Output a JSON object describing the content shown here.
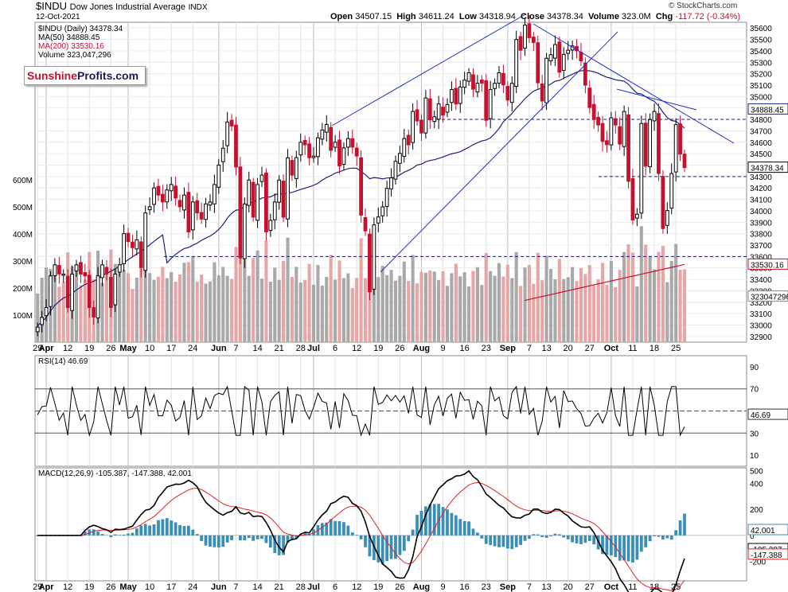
{
  "header": {
    "symbol": "$INDU",
    "name": "Dow Jones Industrial Average",
    "exchange": "INDX",
    "date": "12-Oct-2021",
    "open_label": "Open",
    "open": "34507.15",
    "high_label": "High",
    "high": "34611.24",
    "low_label": "Low",
    "low": "34318.94",
    "close_label": "Close",
    "close": "34378.34",
    "volume_label": "Volume",
    "volume": "323.0M",
    "chg_label": "Chg",
    "chg": "-117.72 (-0.34%)",
    "watermark": "© StockCharts.com"
  },
  "logo": {
    "part1": "Sunshine",
    "part2": "Profits.com"
  },
  "colors": {
    "up": "#000000",
    "down": "#c8102e",
    "ma50": "#1a237e",
    "ma200": "#c8102e",
    "trend": "#1a33c8",
    "vol_up": "#a9a9a9",
    "vol_down": "#e8a5a5",
    "macd_hist": "#3a8fb7",
    "signal": "#e02020"
  },
  "chart_data": [
    {
      "type": "candlestick",
      "legend": [
        "$INDU (Daily) 34378.34",
        "MA(50) 34888.45",
        "MA(200) 33530.16",
        "Volume 323,047,296"
      ],
      "x_ticks": [
        "29",
        "Apr",
        "12",
        "19",
        "26",
        "May",
        "10",
        "17",
        "24",
        "Jun",
        "7",
        "14",
        "21",
        "28",
        "Jul",
        "6",
        "12",
        "19",
        "26",
        "Aug",
        "9",
        "16",
        "23",
        "Sep",
        "7",
        "13",
        "20",
        "27",
        "Oct",
        "11",
        "18",
        "25"
      ],
      "y_ticks": [
        "32900",
        "33000",
        "33100",
        "33200",
        "33300",
        "33400",
        "33500",
        "33600",
        "33700",
        "33800",
        "33900",
        "34000",
        "34100",
        "34200",
        "34300",
        "34400",
        "34500",
        "34600",
        "34700",
        "34800",
        "34900",
        "35000",
        "35100",
        "35200",
        "35300",
        "35400",
        "35500",
        "35600"
      ],
      "ylim": [
        32850,
        35650
      ],
      "value_labels": {
        "last": "34378.34",
        "ma50": "34888.45",
        "ma200": "33530.16",
        "volume": "323047296"
      },
      "volume_ticks": [
        "100M",
        "200M",
        "300M",
        "400M",
        "500M",
        "600M"
      ],
      "volume_ylim": [
        0,
        650
      ],
      "closes": [
        32981,
        33066,
        33153,
        33430,
        33527,
        33447,
        33446,
        33153,
        33446,
        33527,
        33446,
        33430,
        33153,
        33070,
        33430,
        33527,
        33446,
        33153,
        33446,
        33527,
        33800,
        33730,
        33677,
        33746,
        33503,
        33981,
        34035,
        34200,
        34137,
        34077,
        34182,
        34230,
        34112,
        34035,
        34137,
        33815,
        34077,
        33981,
        33927,
        34060,
        34077,
        34230,
        34400,
        34548,
        34777,
        34742,
        34383,
        33587,
        34060,
        34269,
        33944,
        34230,
        34312,
        33815,
        33916,
        34077,
        34269,
        33944,
        34464,
        34312,
        34466,
        34600,
        34577,
        34464,
        34479,
        34639,
        34707,
        34756,
        34529,
        34600,
        34393,
        34551,
        34632,
        34557,
        34479,
        33962,
        33824,
        33290,
        33876,
        33946,
        34034,
        34196,
        34288,
        34433,
        34502,
        34633,
        34577,
        34870,
        34786,
        34681,
        34987,
        34796,
        34823,
        34935,
        34838,
        34930,
        35061,
        34935,
        35084,
        35144,
        35208,
        35064,
        35116,
        35117,
        34792,
        35062,
        35116,
        35208,
        35102,
        34969,
        35116,
        35499,
        35405,
        35625,
        35515,
        35473,
        35120,
        34961,
        35335,
        35366,
        35455,
        35213,
        35369,
        35405,
        35443,
        35400,
        35312,
        35100,
        34904,
        34798,
        34751,
        34607,
        34578,
        34814,
        34751,
        34584,
        34869,
        34258,
        33919,
        33970,
        34764,
        34390,
        34798,
        34869,
        34326,
        33844,
        34002,
        34326,
        34754,
        34496,
        34378
      ],
      "ma50_last": 34888.45,
      "ma200_last": 33530.16,
      "horizontal_lines": [
        33600,
        34800,
        34300
      ]
    },
    {
      "type": "line",
      "title": "RSI(14) 46.69",
      "y_ticks": [
        "10",
        "30",
        "50",
        "70",
        "90"
      ],
      "ylim": [
        0,
        100
      ],
      "reference_lines": [
        30,
        50,
        70
      ],
      "last": "46.69"
    },
    {
      "type": "line",
      "title": "MACD(12,26,9) -105.387, -147.388, 42.001",
      "series": [
        {
          "name": "MACD",
          "last": "-105.387"
        },
        {
          "name": "Signal",
          "last": "-147.388"
        },
        {
          "name": "Histogram",
          "last": "42.001"
        }
      ],
      "y_ticks": [
        "-200",
        "0",
        "200",
        "400",
        "500"
      ],
      "ylim": [
        -350,
        520
      ]
    }
  ]
}
